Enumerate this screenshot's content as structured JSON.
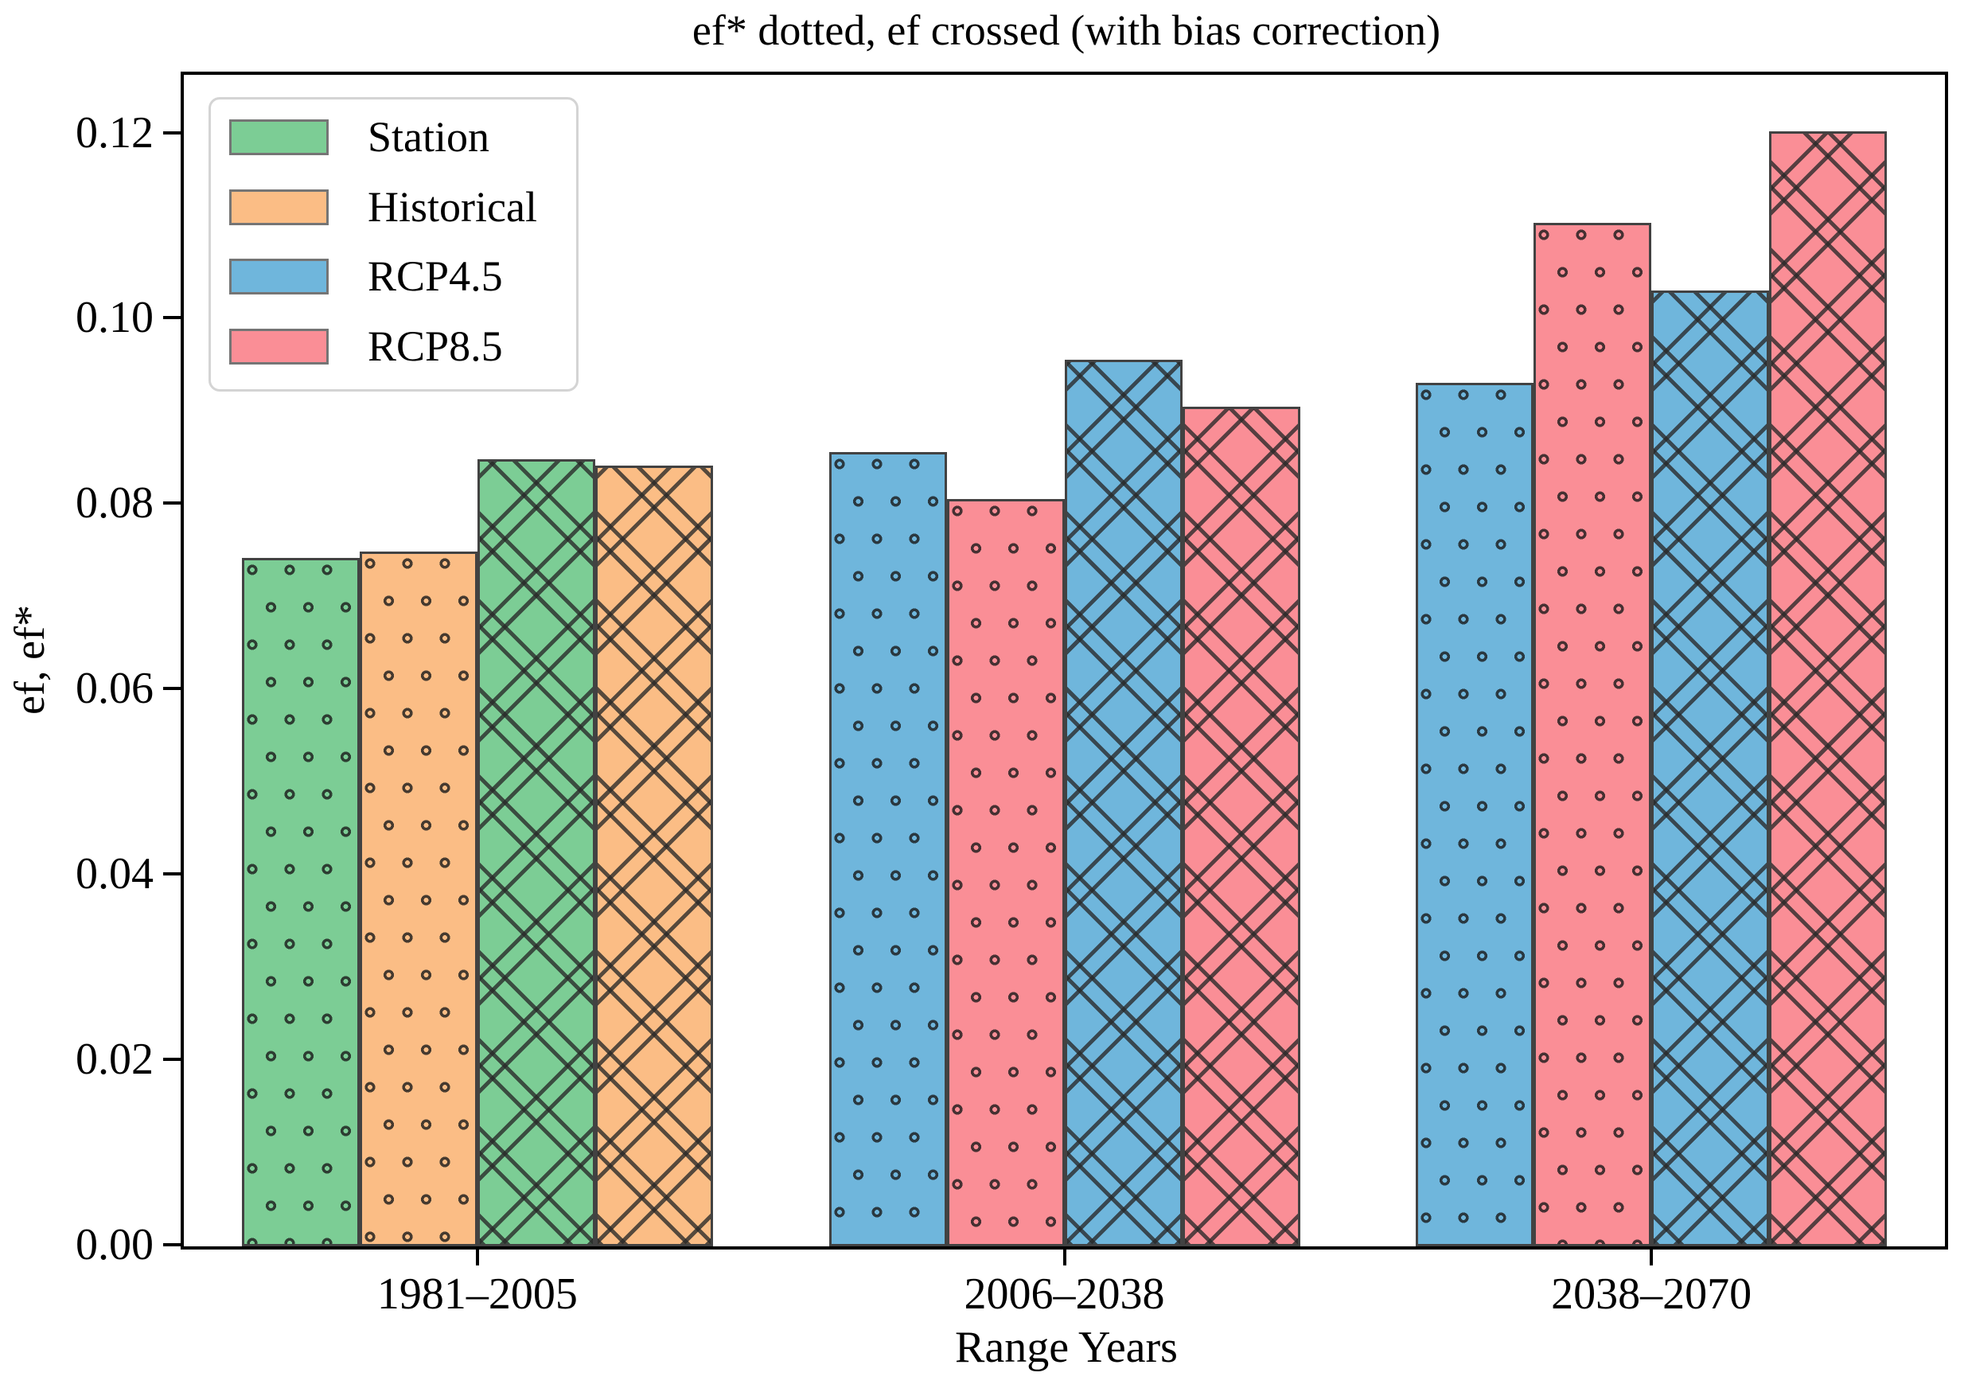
{
  "title": "ef* dotted, ef crossed (with bias correction)",
  "axes": {
    "x_label": "Range Years",
    "y_label": "ef, ef*",
    "y_tick_labels": [
      "0.00",
      "0.02",
      "0.04",
      "0.06",
      "0.08",
      "0.10",
      "0.12"
    ],
    "y_tick_values": [
      0.0,
      0.02,
      0.04,
      0.06,
      0.08,
      0.1,
      0.12
    ]
  },
  "legend": {
    "items": [
      {
        "label": "Station",
        "color": "#7CCD95"
      },
      {
        "label": "Historical",
        "color": "#FBBD85"
      },
      {
        "label": "RCP4.5",
        "color": "#6FB6DC"
      },
      {
        "label": "RCP8.5",
        "color": "#FA8E96"
      }
    ]
  },
  "chart_data": {
    "type": "bar",
    "title": "ef* dotted, ef crossed (with bias correction)",
    "xlabel": "Range Years",
    "ylabel": "ef, ef*",
    "ylim": [
      0,
      0.1264
    ],
    "grid": false,
    "legend_position": "upper left",
    "hatch_legend": {
      "ef*": "dots",
      "ef": "cross"
    },
    "categories": [
      "1981–2005",
      "2006–2038",
      "2038–2070"
    ],
    "groups": [
      {
        "category": "1981–2005",
        "bars": [
          {
            "series": "Station",
            "metric": "ef*",
            "hatch": "dots",
            "value": 0.0743
          },
          {
            "series": "Historical",
            "metric": "ef*",
            "hatch": "dots",
            "value": 0.075
          },
          {
            "series": "Station",
            "metric": "ef",
            "hatch": "cross",
            "value": 0.0849
          },
          {
            "series": "Historical",
            "metric": "ef",
            "hatch": "cross",
            "value": 0.0842
          }
        ]
      },
      {
        "category": "2006–2038",
        "bars": [
          {
            "series": "RCP4.5",
            "metric": "ef*",
            "hatch": "dots",
            "value": 0.0857
          },
          {
            "series": "RCP8.5",
            "metric": "ef*",
            "hatch": "dots",
            "value": 0.0806
          },
          {
            "series": "RCP4.5",
            "metric": "ef",
            "hatch": "cross",
            "value": 0.0957
          },
          {
            "series": "RCP8.5",
            "metric": "ef",
            "hatch": "cross",
            "value": 0.0906
          }
        ]
      },
      {
        "category": "2038–2070",
        "bars": [
          {
            "series": "RCP4.5",
            "metric": "ef*",
            "hatch": "dots",
            "value": 0.0932
          },
          {
            "series": "RCP8.5",
            "metric": "ef*",
            "hatch": "dots",
            "value": 0.1104
          },
          {
            "series": "RCP4.5",
            "metric": "ef",
            "hatch": "cross",
            "value": 0.1031
          },
          {
            "series": "RCP8.5",
            "metric": "ef",
            "hatch": "cross",
            "value": 0.1203
          }
        ]
      }
    ],
    "colors": {
      "Station": "#7CCD95",
      "Historical": "#FBBD85",
      "RCP4.5": "#6FB6DC",
      "RCP8.5": "#FA8E96"
    },
    "bar_edge_color": "#424242",
    "spine_color": "#000000"
  }
}
